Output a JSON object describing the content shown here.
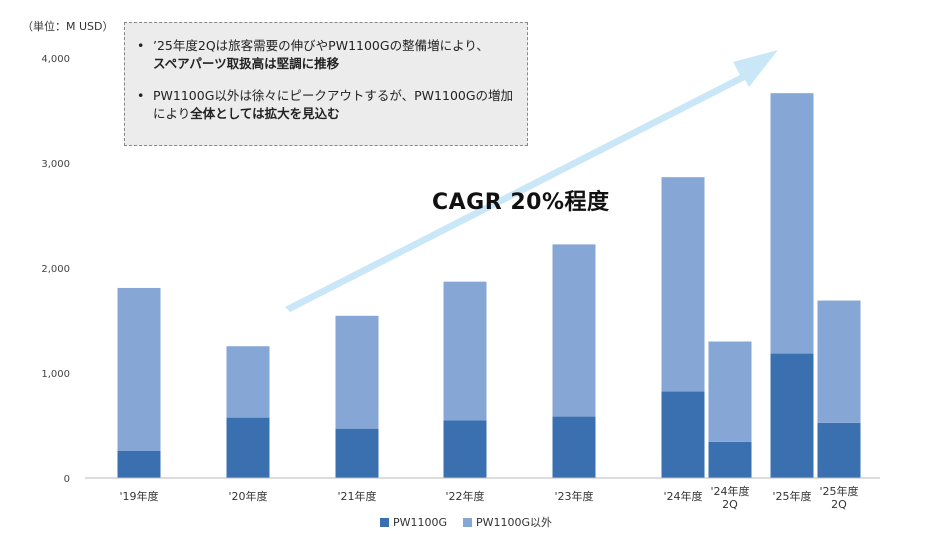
{
  "unit_label": "（単位：M USD）",
  "notes": [
    {
      "parts": [
        {
          "t": "’25年度2Qは旅客需要の伸びやPW1100Gの整備増により、",
          "b": false
        },
        {
          "t": "スペアパーツ取扱高は堅調に推移",
          "b": true
        }
      ]
    },
    {
      "parts": [
        {
          "t": "PW1100G以外は徐々にピークアウトするが、PW1100Gの増加により",
          "b": false
        },
        {
          "t": "全体としては拡大を見込む",
          "b": true
        }
      ]
    }
  ],
  "bullet": "•",
  "cagr_text": "CAGR 20%程度",
  "colors": {
    "pw1100g": "#3a70b0",
    "other": "#86a6d6",
    "arrow": "#c9e7f7"
  },
  "chart_data": {
    "type": "bar",
    "stacked": true,
    "categories": [
      "'19年度",
      "'20年度",
      "'21年度",
      "'22年度",
      "'23年度",
      "'24年度",
      "'24年度\n2Q",
      "'25年度",
      "'25年度\n2Q"
    ],
    "series": [
      {
        "name": "PW1100G",
        "values": [
          260,
          575,
          470,
          550,
          585,
          825,
          345,
          1185,
          525
        ]
      },
      {
        "name": "PW1100G以外",
        "values": [
          1550,
          680,
          1075,
          1320,
          1640,
          2040,
          955,
          2480,
          1165
        ]
      }
    ],
    "ylim": [
      0,
      4000
    ],
    "yticks": [
      "0",
      "1,000",
      "2,000",
      "3,000",
      "4,000"
    ],
    "ytick_values": [
      0,
      1000,
      2000,
      3000,
      4000
    ],
    "grid": false,
    "legend": "bottom"
  }
}
